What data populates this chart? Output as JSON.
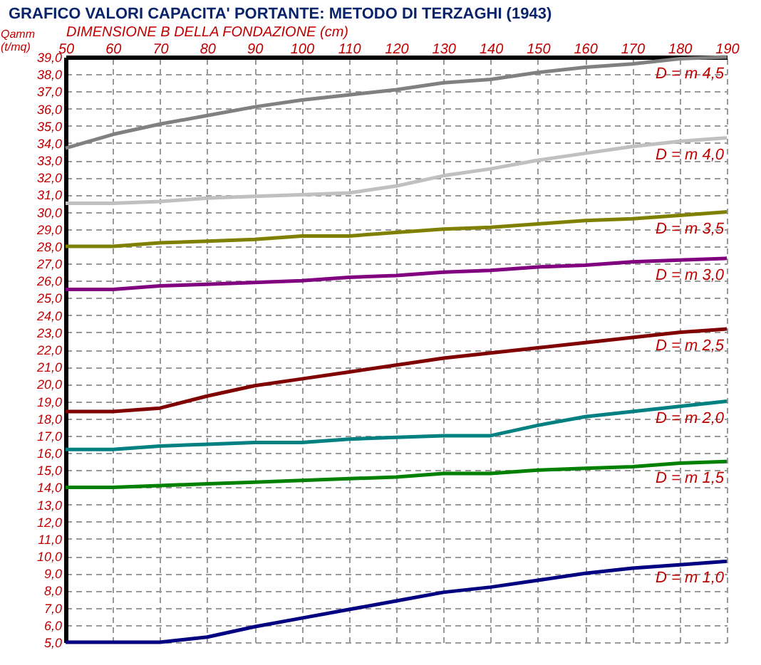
{
  "chart_data": {
    "type": "line",
    "title": "GRAFICO VALORI CAPACITA' PORTANTE: METODO DI TERZAGHI (1943)",
    "xlabel": "DIMENSIONE B DELLA FONDAZIONE (cm)",
    "ylabel": "Qamm (t/mq)",
    "x": [
      50,
      60,
      70,
      80,
      90,
      100,
      110,
      120,
      130,
      140,
      150,
      160,
      170,
      180,
      190
    ],
    "series": [
      {
        "name": "D = m 1,0",
        "color": "#000080",
        "values": [
          5.0,
          5.0,
          5.0,
          5.3,
          5.9,
          6.4,
          6.9,
          7.4,
          7.9,
          8.2,
          8.6,
          9.0,
          9.3,
          9.5,
          9.7
        ]
      },
      {
        "name": "D = m 1,5",
        "color": "#008000",
        "values": [
          14.0,
          14.0,
          14.1,
          14.2,
          14.3,
          14.4,
          14.5,
          14.6,
          14.8,
          14.8,
          15.0,
          15.1,
          15.2,
          15.4,
          15.5
        ]
      },
      {
        "name": "D = m 2,0",
        "color": "#008080",
        "values": [
          16.2,
          16.2,
          16.4,
          16.5,
          16.6,
          16.6,
          16.8,
          16.9,
          17.0,
          17.0,
          17.6,
          18.1,
          18.4,
          18.7,
          19.0
        ]
      },
      {
        "name": "D = m 2,5",
        "color": "#800000",
        "values": [
          18.4,
          18.4,
          18.6,
          19.3,
          19.9,
          20.3,
          20.7,
          21.1,
          21.5,
          21.8,
          22.1,
          22.4,
          22.7,
          23.0,
          23.2
        ]
      },
      {
        "name": "D = m 3,0",
        "color": "#800080",
        "values": [
          25.5,
          25.5,
          25.7,
          25.8,
          25.9,
          26.0,
          26.2,
          26.3,
          26.5,
          26.6,
          26.8,
          26.9,
          27.1,
          27.2,
          27.3
        ]
      },
      {
        "name": "D = m 3,5",
        "color": "#808000",
        "values": [
          28.0,
          28.0,
          28.2,
          28.3,
          28.4,
          28.6,
          28.6,
          28.8,
          29.0,
          29.1,
          29.3,
          29.5,
          29.6,
          29.8,
          30.0
        ]
      },
      {
        "name": "D = m 4,0",
        "color": "#c0c0c0",
        "values": [
          30.5,
          30.5,
          30.6,
          30.8,
          30.9,
          31.0,
          31.1,
          31.5,
          32.1,
          32.5,
          33.0,
          33.4,
          33.8,
          34.1,
          34.3
        ]
      },
      {
        "name": "D = m 4,5",
        "color": "#808080",
        "values": [
          33.7,
          34.5,
          35.1,
          35.6,
          36.1,
          36.5,
          36.8,
          37.1,
          37.5,
          37.7,
          38.1,
          38.4,
          38.6,
          38.9,
          39.0
        ]
      }
    ],
    "xlim": [
      50,
      190
    ],
    "xticks": [
      50,
      60,
      70,
      80,
      90,
      100,
      110,
      120,
      130,
      140,
      150,
      160,
      170,
      180,
      190
    ],
    "ylim": [
      5,
      39
    ],
    "yticks": [
      {
        "value": 5,
        "label": "5,0"
      },
      {
        "value": 6,
        "label": "6,0"
      },
      {
        "value": 7,
        "label": "7,0"
      },
      {
        "value": 8,
        "label": "8,0"
      },
      {
        "value": 9,
        "label": "9,0"
      },
      {
        "value": 10,
        "label": "10,0"
      },
      {
        "value": 11,
        "label": "11,0"
      },
      {
        "value": 12,
        "label": "12,0"
      },
      {
        "value": 13,
        "label": "13,0"
      },
      {
        "value": 14,
        "label": "14,0"
      },
      {
        "value": 15,
        "label": "15,0"
      },
      {
        "value": 16,
        "label": "16,0"
      },
      {
        "value": 17,
        "label": "17,0"
      },
      {
        "value": 18,
        "label": "18,0"
      },
      {
        "value": 19,
        "label": "19,0"
      },
      {
        "value": 20,
        "label": "20,0"
      },
      {
        "value": 21,
        "label": "21,0"
      },
      {
        "value": 22,
        "label": "22,0"
      },
      {
        "value": 23,
        "label": "23,0"
      },
      {
        "value": 24,
        "label": "24,0"
      },
      {
        "value": 25,
        "label": "25,0"
      },
      {
        "value": 26,
        "label": "26,0"
      },
      {
        "value": 27,
        "label": "27,0"
      },
      {
        "value": 28,
        "label": "28,0"
      },
      {
        "value": 29,
        "label": "29,0"
      },
      {
        "value": 30,
        "label": "30,0"
      },
      {
        "value": 31,
        "label": "31,0"
      },
      {
        "value": 32,
        "label": "32,0"
      },
      {
        "value": 33,
        "label": "33,0"
      },
      {
        "value": 34,
        "label": "34,0"
      },
      {
        "value": 35,
        "label": "35,0"
      },
      {
        "value": 36,
        "label": "36,0"
      },
      {
        "value": 37,
        "label": "37,0"
      },
      {
        "value": 38,
        "label": "38,0"
      },
      {
        "value": 39,
        "label": "39,0"
      }
    ],
    "grid": true
  }
}
